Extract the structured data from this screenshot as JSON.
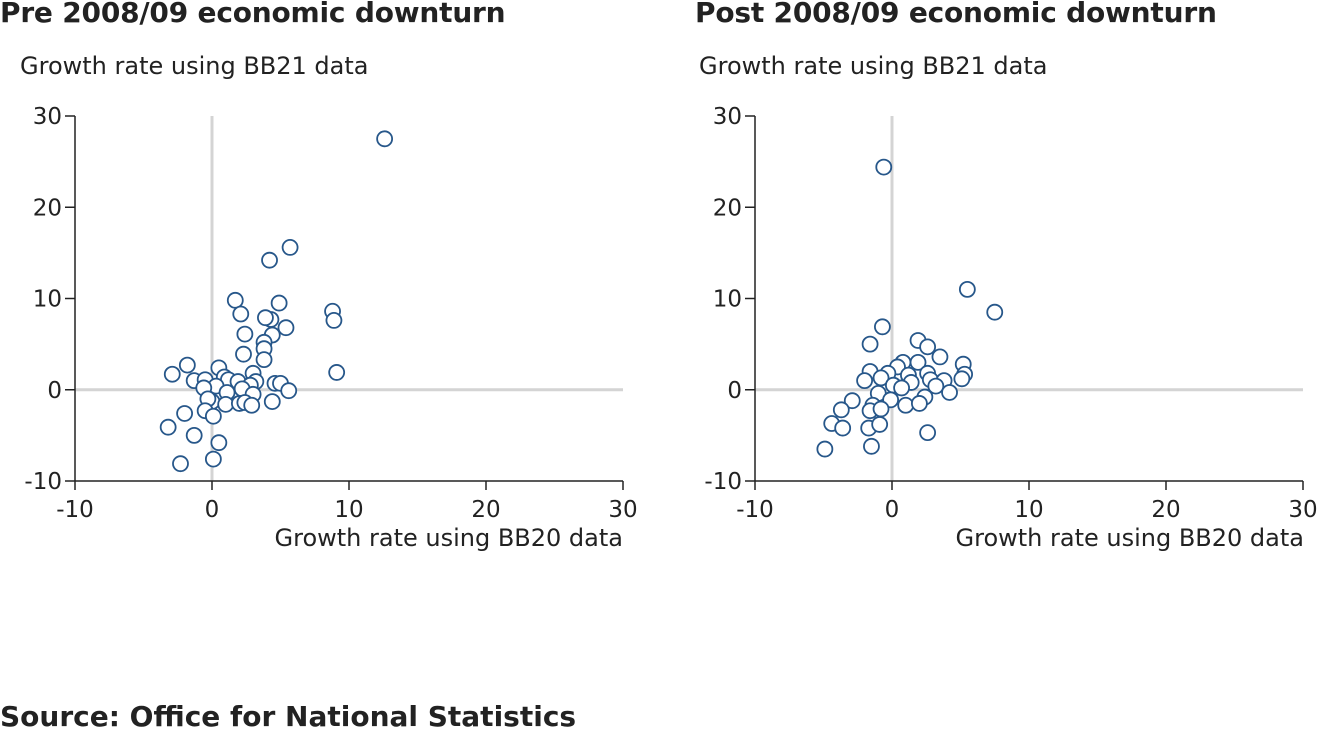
{
  "source": "Source: Office for National Statistics",
  "chart_data": [
    {
      "type": "scatter",
      "title": "Pre 2008/09 economic downturn",
      "xlabel": "Growth rate using BB20 data",
      "ylabel": "Growth rate using BB21 data",
      "xlim": [
        -10,
        30
      ],
      "ylim": [
        -10,
        30
      ],
      "xticks": [
        -10,
        0,
        10,
        20,
        30
      ],
      "yticks": [
        -10,
        0,
        10,
        20,
        30
      ],
      "zero_lines": true,
      "marker_color": "#27578a",
      "points": [
        [
          12.6,
          27.5
        ],
        [
          5.7,
          15.6
        ],
        [
          4.2,
          14.2
        ],
        [
          1.7,
          9.8
        ],
        [
          4.9,
          9.5
        ],
        [
          2.1,
          8.3
        ],
        [
          8.8,
          8.6
        ],
        [
          8.9,
          7.6
        ],
        [
          4.3,
          7.7
        ],
        [
          5.4,
          6.8
        ],
        [
          3.9,
          7.9
        ],
        [
          2.4,
          6.1
        ],
        [
          4.4,
          6.0
        ],
        [
          3.8,
          5.2
        ],
        [
          3.8,
          4.5
        ],
        [
          2.3,
          3.9
        ],
        [
          3.8,
          3.3
        ],
        [
          -1.8,
          2.7
        ],
        [
          0.5,
          2.4
        ],
        [
          -2.9,
          1.7
        ],
        [
          9.1,
          1.9
        ],
        [
          3.0,
          1.8
        ],
        [
          0.9,
          1.4
        ],
        [
          1.2,
          1.1
        ],
        [
          -1.3,
          1.0
        ],
        [
          -0.5,
          1.1
        ],
        [
          1.9,
          0.9
        ],
        [
          3.2,
          0.9
        ],
        [
          4.6,
          0.7
        ],
        [
          5.0,
          0.7
        ],
        [
          0.3,
          0.4
        ],
        [
          2.8,
          0.5
        ],
        [
          1.1,
          -0.3
        ],
        [
          -0.6,
          0.2
        ],
        [
          2.2,
          0.1
        ],
        [
          5.6,
          -0.1
        ],
        [
          3.0,
          -0.5
        ],
        [
          0.0,
          -1.3
        ],
        [
          -0.3,
          -1.0
        ],
        [
          1.0,
          -1.6
        ],
        [
          2.0,
          -1.5
        ],
        [
          2.4,
          -1.4
        ],
        [
          2.9,
          -1.7
        ],
        [
          4.4,
          -1.3
        ],
        [
          -0.5,
          -2.3
        ],
        [
          -2.0,
          -2.6
        ],
        [
          0.1,
          -2.9
        ],
        [
          -3.2,
          -4.1
        ],
        [
          -1.3,
          -5.0
        ],
        [
          0.5,
          -5.8
        ],
        [
          -2.3,
          -8.1
        ],
        [
          0.1,
          -7.6
        ]
      ]
    },
    {
      "type": "scatter",
      "title": "Post 2008/09 economic downturn",
      "xlabel": "Growth rate using BB20 data",
      "ylabel": "Growth rate using BB21 data",
      "xlim": [
        -10,
        30
      ],
      "ylim": [
        -10,
        30
      ],
      "xticks": [
        -10,
        0,
        10,
        20,
        30
      ],
      "yticks": [
        -10,
        0,
        10,
        20,
        30
      ],
      "zero_lines": true,
      "marker_color": "#27578a",
      "points": [
        [
          -0.6,
          24.4
        ],
        [
          5.5,
          11.0
        ],
        [
          7.5,
          8.5
        ],
        [
          -0.7,
          6.9
        ],
        [
          1.9,
          5.4
        ],
        [
          -1.6,
          5.0
        ],
        [
          2.6,
          4.7
        ],
        [
          3.5,
          3.6
        ],
        [
          0.8,
          3.0
        ],
        [
          1.9,
          3.0
        ],
        [
          5.2,
          2.8
        ],
        [
          0.4,
          2.5
        ],
        [
          -1.6,
          2.0
        ],
        [
          -0.3,
          1.8
        ],
        [
          1.2,
          1.6
        ],
        [
          2.6,
          1.8
        ],
        [
          5.3,
          1.7
        ],
        [
          -2.0,
          1.0
        ],
        [
          -0.8,
          1.3
        ],
        [
          1.4,
          0.8
        ],
        [
          2.8,
          1.1
        ],
        [
          3.8,
          1.0
        ],
        [
          5.1,
          1.2
        ],
        [
          0.1,
          0.5
        ],
        [
          3.2,
          0.4
        ],
        [
          -1.0,
          -0.4
        ],
        [
          0.7,
          0.2
        ],
        [
          4.2,
          -0.3
        ],
        [
          -0.1,
          -1.1
        ],
        [
          2.4,
          -0.8
        ],
        [
          -2.9,
          -1.2
        ],
        [
          -1.4,
          -1.7
        ],
        [
          1.0,
          -1.7
        ],
        [
          2.0,
          -1.5
        ],
        [
          -1.6,
          -2.3
        ],
        [
          -0.8,
          -2.1
        ],
        [
          -3.7,
          -2.2
        ],
        [
          -4.4,
          -3.7
        ],
        [
          -1.7,
          -4.2
        ],
        [
          -3.6,
          -4.2
        ],
        [
          -0.9,
          -3.8
        ],
        [
          2.6,
          -4.7
        ],
        [
          -1.5,
          -6.2
        ],
        [
          -4.9,
          -6.5
        ]
      ]
    }
  ]
}
